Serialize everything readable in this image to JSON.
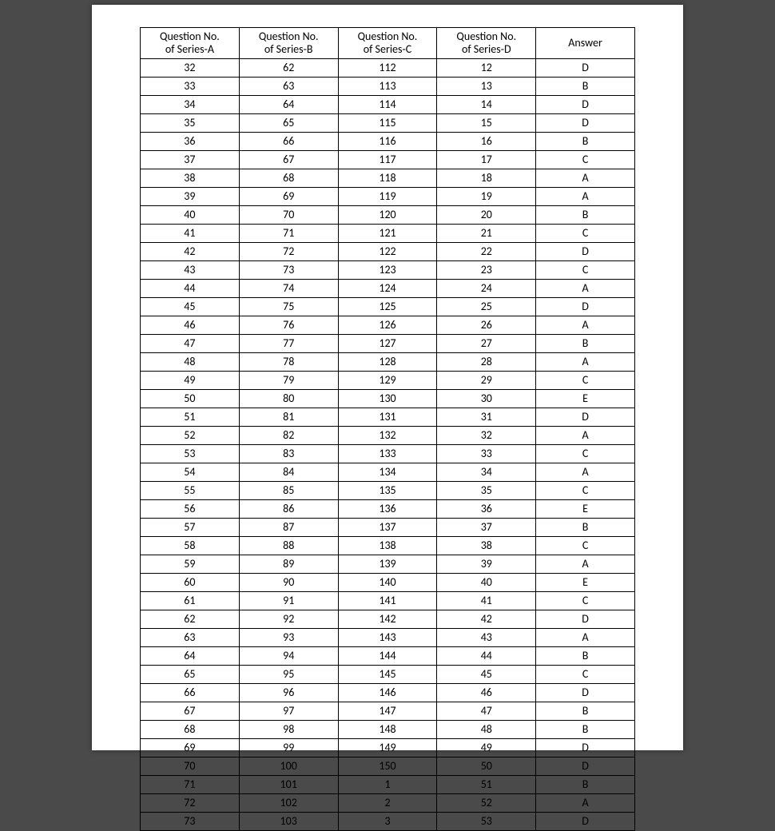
{
  "table": {
    "type": "table",
    "background_color": "#ffffff",
    "page_background": "#4a4a4a",
    "border_color": "#000000",
    "text_color": "#000000",
    "font_family": "Calibri",
    "header_fontsize": 14,
    "cell_fontsize": 14,
    "columns": [
      {
        "line1": "Question No.",
        "line2": "of Series-A",
        "width_pct": 20
      },
      {
        "line1": "Question No.",
        "line2": "of Series-B",
        "width_pct": 20
      },
      {
        "line1": "Question No.",
        "line2": "of Series-C",
        "width_pct": 20
      },
      {
        "line1": "Question No.",
        "line2": "of Series-D",
        "width_pct": 20
      },
      {
        "line1": "Answer",
        "line2": "",
        "width_pct": 20
      }
    ],
    "rows": [
      [
        "32",
        "62",
        "112",
        "12",
        "D"
      ],
      [
        "33",
        "63",
        "113",
        "13",
        "B"
      ],
      [
        "34",
        "64",
        "114",
        "14",
        "D"
      ],
      [
        "35",
        "65",
        "115",
        "15",
        "D"
      ],
      [
        "36",
        "66",
        "116",
        "16",
        "B"
      ],
      [
        "37",
        "67",
        "117",
        "17",
        "C"
      ],
      [
        "38",
        "68",
        "118",
        "18",
        "A"
      ],
      [
        "39",
        "69",
        "119",
        "19",
        "A"
      ],
      [
        "40",
        "70",
        "120",
        "20",
        "B"
      ],
      [
        "41",
        "71",
        "121",
        "21",
        "C"
      ],
      [
        "42",
        "72",
        "122",
        "22",
        "D"
      ],
      [
        "43",
        "73",
        "123",
        "23",
        "C"
      ],
      [
        "44",
        "74",
        "124",
        "24",
        "A"
      ],
      [
        "45",
        "75",
        "125",
        "25",
        "D"
      ],
      [
        "46",
        "76",
        "126",
        "26",
        "A"
      ],
      [
        "47",
        "77",
        "127",
        "27",
        "B"
      ],
      [
        "48",
        "78",
        "128",
        "28",
        "A"
      ],
      [
        "49",
        "79",
        "129",
        "29",
        "C"
      ],
      [
        "50",
        "80",
        "130",
        "30",
        "E"
      ],
      [
        "51",
        "81",
        "131",
        "31",
        "D"
      ],
      [
        "52",
        "82",
        "132",
        "32",
        "A"
      ],
      [
        "53",
        "83",
        "133",
        "33",
        "C"
      ],
      [
        "54",
        "84",
        "134",
        "34",
        "A"
      ],
      [
        "55",
        "85",
        "135",
        "35",
        "C"
      ],
      [
        "56",
        "86",
        "136",
        "36",
        "E"
      ],
      [
        "57",
        "87",
        "137",
        "37",
        "B"
      ],
      [
        "58",
        "88",
        "138",
        "38",
        "C"
      ],
      [
        "59",
        "89",
        "139",
        "39",
        "A"
      ],
      [
        "60",
        "90",
        "140",
        "40",
        "E"
      ],
      [
        "61",
        "91",
        "141",
        "41",
        "C"
      ],
      [
        "62",
        "92",
        "142",
        "42",
        "D"
      ],
      [
        "63",
        "93",
        "143",
        "43",
        "A"
      ],
      [
        "64",
        "94",
        "144",
        "44",
        "B"
      ],
      [
        "65",
        "95",
        "145",
        "45",
        "C"
      ],
      [
        "66",
        "96",
        "146",
        "46",
        "D"
      ],
      [
        "67",
        "97",
        "147",
        "47",
        "B"
      ],
      [
        "68",
        "98",
        "148",
        "48",
        "B"
      ],
      [
        "69",
        "99",
        "149",
        "49",
        "D"
      ],
      [
        "70",
        "100",
        "150",
        "50",
        "D"
      ],
      [
        "71",
        "101",
        "1",
        "51",
        "B"
      ],
      [
        "72",
        "102",
        "2",
        "52",
        "A"
      ],
      [
        "73",
        "103",
        "3",
        "53",
        "D"
      ]
    ]
  }
}
